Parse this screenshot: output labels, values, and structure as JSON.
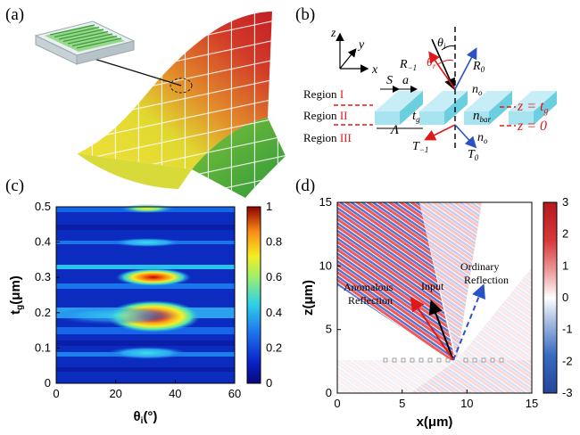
{
  "panels": {
    "a": {
      "label": "(a)"
    },
    "b": {
      "label": "(b)",
      "axes": {
        "z": "z",
        "y": "y",
        "x": "x"
      },
      "symbols": {
        "theta_i": "θ",
        "theta_i_sub": "i",
        "theta_r": "θ",
        "theta_r_sub": "r",
        "R_m1": "R",
        "R_m1_sub": "−1",
        "R_0": "R",
        "R_0_sub": "0",
        "n_o_top": "n",
        "n_o_top_sub": "o",
        "S": "S",
        "a": "a",
        "t_g": "t",
        "t_g_sub": "g",
        "Lambda": "Λ",
        "n_bar": "n",
        "n_bar_sub": "bar",
        "n_o_bottom": "n",
        "n_o_bottom_sub": "o",
        "T_m1": "T",
        "T_m1_sub": "−1",
        "T_0": "T",
        "T_0_sub": "0"
      },
      "regions": [
        {
          "text": "Region ",
          "roman": "I"
        },
        {
          "text": "Region ",
          "roman": "II"
        },
        {
          "text": "Region ",
          "roman": "III"
        }
      ],
      "equations": {
        "top": "z = t",
        "top_sub": "g",
        "bottom": "z = 0"
      }
    },
    "c": {
      "label": "(c)",
      "chart_data": {
        "type": "heatmap",
        "xlabel": "θ",
        "xlabel_sub": "i",
        "xlabel_unit": "(°)",
        "ylabel": "t",
        "ylabel_sub": "g",
        "ylabel_unit": "(μm)",
        "xlim": [
          0,
          60
        ],
        "ylim": [
          0,
          0.5
        ],
        "xticks": [
          "0",
          "20",
          "40",
          "60"
        ],
        "yticks": [
          "0",
          "0.1",
          "0.2",
          "0.3",
          "0.4",
          "0.5"
        ],
        "colorbar": {
          "range": [
            0,
            1
          ],
          "ticks": [
            "0",
            "0.2",
            "0.4",
            "0.6",
            "0.8",
            "1"
          ]
        },
        "peaks": [
          {
            "theta_deg": 33,
            "t_g_um": 0.185,
            "value": 1.0
          },
          {
            "theta_deg": 33,
            "t_g_um": 0.295,
            "value": 0.95
          },
          {
            "theta_deg": 33,
            "t_g_um": 0.49,
            "value": 0.55
          },
          {
            "theta_deg": 33,
            "t_g_um": 0.085,
            "value": 0.35
          },
          {
            "theta_deg": 33,
            "t_g_um": 0.39,
            "value": 0.35
          }
        ]
      }
    },
    "d": {
      "label": "(d)",
      "chart_data": {
        "type": "field-map",
        "xlabel": "x(μm)",
        "ylabel": "z(μm)",
        "xlim": [
          0,
          15
        ],
        "ylim": [
          0,
          15
        ],
        "xticks": [
          "0",
          "5",
          "10",
          "15"
        ],
        "yticks": [
          "0",
          "5",
          "10",
          "15"
        ],
        "colorbar": {
          "range": [
            -3,
            3
          ],
          "ticks": [
            "3",
            "2",
            "1",
            "0",
            "-1",
            "-2",
            "-3"
          ]
        },
        "annotations": [
          {
            "text": "Anomalous"
          },
          {
            "text": "Reflection"
          },
          {
            "text": "Input"
          },
          {
            "text": "Ordinary"
          },
          {
            "text": "Reflection"
          }
        ],
        "arrows": [
          {
            "name": "input",
            "from": [
              8.9,
              2.3
            ],
            "to": [
              7.3,
              6.5
            ]
          },
          {
            "name": "anomalous",
            "from": [
              8.9,
              2.3
            ],
            "to": [
              5.8,
              7.1
            ]
          },
          {
            "name": "ordinary",
            "from": [
              8.9,
              2.3
            ],
            "to": [
              11.1,
              8.1
            ]
          }
        ]
      }
    }
  }
}
